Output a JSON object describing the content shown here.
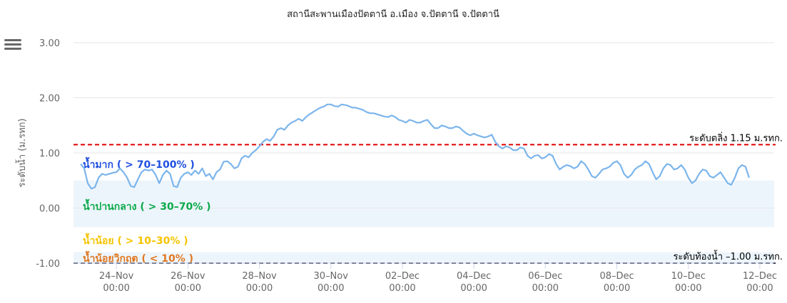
{
  "title": "สถานีสะพานเมืองปัตตานี อ.เมือง จ.ปัตตานี จ.ปัตตานี",
  "menu_icon": "hamburger-menu-icon",
  "chart_data": {
    "type": "line",
    "ylabel": "ระดับน้ำ (ม.รทก)",
    "ylim": [
      -1.0,
      3.0
    ],
    "y_ticks": [
      "3.00",
      "2.00",
      "1.00",
      "0.00",
      "-1.00"
    ],
    "y_tick_values": [
      3,
      2,
      1,
      0,
      -1
    ],
    "x_ticks": [
      {
        "day": 24,
        "line1": "24–Nov",
        "line2": "00:00"
      },
      {
        "day": 26,
        "line1": "26–Nov",
        "line2": "00:00"
      },
      {
        "day": 28,
        "line1": "28–Nov",
        "line2": "00:00"
      },
      {
        "day": 30,
        "line1": "30–Nov",
        "line2": "00:00"
      },
      {
        "day": 32,
        "line1": "02–Dec",
        "line2": "00:00"
      },
      {
        "day": 34,
        "line1": "04–Dec",
        "line2": "00:00"
      },
      {
        "day": 36,
        "line1": "06–Dec",
        "line2": "00:00"
      },
      {
        "day": 38,
        "line1": "08–Dec",
        "line2": "00:00"
      },
      {
        "day": 40,
        "line1": "10–Dec",
        "line2": "00:00"
      },
      {
        "day": 42,
        "line1": "12–Dec",
        "line2": "00:00"
      }
    ],
    "x_range_days": [
      22.8,
      42.4
    ],
    "series": [
      {
        "color": "#7cb5ec",
        "points": [
          [
            23.0,
            0.8
          ],
          [
            23.1,
            0.72
          ],
          [
            23.2,
            0.45
          ],
          [
            23.3,
            0.35
          ],
          [
            23.4,
            0.38
          ],
          [
            23.5,
            0.55
          ],
          [
            23.6,
            0.62
          ],
          [
            23.7,
            0.6
          ],
          [
            23.8,
            0.62
          ],
          [
            23.9,
            0.64
          ],
          [
            24.0,
            0.65
          ],
          [
            24.1,
            0.72
          ],
          [
            24.2,
            0.65
          ],
          [
            24.3,
            0.55
          ],
          [
            24.4,
            0.4
          ],
          [
            24.5,
            0.38
          ],
          [
            24.6,
            0.52
          ],
          [
            24.7,
            0.65
          ],
          [
            24.8,
            0.7
          ],
          [
            24.9,
            0.68
          ],
          [
            25.0,
            0.7
          ],
          [
            25.1,
            0.6
          ],
          [
            25.2,
            0.45
          ],
          [
            25.3,
            0.6
          ],
          [
            25.4,
            0.68
          ],
          [
            25.5,
            0.62
          ],
          [
            25.6,
            0.4
          ],
          [
            25.7,
            0.38
          ],
          [
            25.8,
            0.55
          ],
          [
            25.9,
            0.62
          ],
          [
            26.0,
            0.65
          ],
          [
            26.1,
            0.6
          ],
          [
            26.2,
            0.68
          ],
          [
            26.3,
            0.62
          ],
          [
            26.4,
            0.72
          ],
          [
            26.5,
            0.58
          ],
          [
            26.6,
            0.62
          ],
          [
            26.7,
            0.52
          ],
          [
            26.8,
            0.65
          ],
          [
            26.9,
            0.7
          ],
          [
            27.0,
            0.84
          ],
          [
            27.1,
            0.85
          ],
          [
            27.2,
            0.8
          ],
          [
            27.3,
            0.72
          ],
          [
            27.4,
            0.75
          ],
          [
            27.5,
            0.9
          ],
          [
            27.6,
            0.95
          ],
          [
            27.7,
            0.92
          ],
          [
            27.8,
            1.0
          ],
          [
            27.9,
            1.05
          ],
          [
            28.0,
            1.12
          ],
          [
            28.1,
            1.2
          ],
          [
            28.2,
            1.25
          ],
          [
            28.3,
            1.22
          ],
          [
            28.4,
            1.3
          ],
          [
            28.5,
            1.42
          ],
          [
            28.6,
            1.45
          ],
          [
            28.7,
            1.42
          ],
          [
            28.8,
            1.5
          ],
          [
            28.9,
            1.55
          ],
          [
            29.0,
            1.58
          ],
          [
            29.1,
            1.62
          ],
          [
            29.2,
            1.58
          ],
          [
            29.3,
            1.65
          ],
          [
            29.4,
            1.7
          ],
          [
            29.5,
            1.74
          ],
          [
            29.6,
            1.78
          ],
          [
            29.7,
            1.82
          ],
          [
            29.8,
            1.84
          ],
          [
            29.9,
            1.88
          ],
          [
            30.0,
            1.88
          ],
          [
            30.1,
            1.85
          ],
          [
            30.2,
            1.84
          ],
          [
            30.3,
            1.88
          ],
          [
            30.4,
            1.87
          ],
          [
            30.5,
            1.85
          ],
          [
            30.6,
            1.82
          ],
          [
            30.7,
            1.82
          ],
          [
            30.8,
            1.8
          ],
          [
            30.9,
            1.78
          ],
          [
            31.0,
            1.74
          ],
          [
            31.1,
            1.72
          ],
          [
            31.2,
            1.72
          ],
          [
            31.3,
            1.7
          ],
          [
            31.4,
            1.68
          ],
          [
            31.5,
            1.66
          ],
          [
            31.6,
            1.65
          ],
          [
            31.7,
            1.68
          ],
          [
            31.8,
            1.65
          ],
          [
            31.9,
            1.6
          ],
          [
            32.0,
            1.58
          ],
          [
            32.1,
            1.55
          ],
          [
            32.2,
            1.6
          ],
          [
            32.3,
            1.58
          ],
          [
            32.4,
            1.55
          ],
          [
            32.5,
            1.55
          ],
          [
            32.6,
            1.58
          ],
          [
            32.7,
            1.6
          ],
          [
            32.8,
            1.52
          ],
          [
            32.9,
            1.45
          ],
          [
            33.0,
            1.45
          ],
          [
            33.1,
            1.5
          ],
          [
            33.2,
            1.48
          ],
          [
            33.3,
            1.45
          ],
          [
            33.4,
            1.45
          ],
          [
            33.5,
            1.48
          ],
          [
            33.6,
            1.46
          ],
          [
            33.7,
            1.4
          ],
          [
            33.8,
            1.35
          ],
          [
            33.9,
            1.32
          ],
          [
            34.0,
            1.35
          ],
          [
            34.1,
            1.32
          ],
          [
            34.2,
            1.3
          ],
          [
            34.3,
            1.28
          ],
          [
            34.4,
            1.3
          ],
          [
            34.5,
            1.33
          ],
          [
            34.6,
            1.2
          ],
          [
            34.7,
            1.12
          ],
          [
            34.8,
            1.08
          ],
          [
            34.9,
            1.12
          ],
          [
            35.0,
            1.1
          ],
          [
            35.1,
            1.05
          ],
          [
            35.2,
            1.05
          ],
          [
            35.3,
            1.1
          ],
          [
            35.4,
            1.08
          ],
          [
            35.5,
            0.95
          ],
          [
            35.6,
            0.9
          ],
          [
            35.7,
            0.95
          ],
          [
            35.8,
            0.96
          ],
          [
            35.9,
            0.9
          ],
          [
            36.0,
            0.92
          ],
          [
            36.1,
            0.98
          ],
          [
            36.2,
            0.95
          ],
          [
            36.3,
            0.8
          ],
          [
            36.4,
            0.7
          ],
          [
            36.5,
            0.75
          ],
          [
            36.6,
            0.78
          ],
          [
            36.7,
            0.76
          ],
          [
            36.8,
            0.72
          ],
          [
            36.9,
            0.75
          ],
          [
            37.0,
            0.85
          ],
          [
            37.1,
            0.8
          ],
          [
            37.2,
            0.7
          ],
          [
            37.3,
            0.58
          ],
          [
            37.4,
            0.55
          ],
          [
            37.5,
            0.62
          ],
          [
            37.6,
            0.7
          ],
          [
            37.7,
            0.72
          ],
          [
            37.8,
            0.75
          ],
          [
            37.9,
            0.82
          ],
          [
            38.0,
            0.85
          ],
          [
            38.1,
            0.78
          ],
          [
            38.2,
            0.62
          ],
          [
            38.3,
            0.55
          ],
          [
            38.4,
            0.6
          ],
          [
            38.5,
            0.7
          ],
          [
            38.6,
            0.75
          ],
          [
            38.7,
            0.78
          ],
          [
            38.8,
            0.85
          ],
          [
            38.9,
            0.8
          ],
          [
            39.0,
            0.65
          ],
          [
            39.1,
            0.52
          ],
          [
            39.2,
            0.58
          ],
          [
            39.3,
            0.72
          ],
          [
            39.4,
            0.8
          ],
          [
            39.5,
            0.78
          ],
          [
            39.6,
            0.7
          ],
          [
            39.7,
            0.72
          ],
          [
            39.8,
            0.78
          ],
          [
            39.9,
            0.7
          ],
          [
            40.0,
            0.55
          ],
          [
            40.1,
            0.45
          ],
          [
            40.2,
            0.5
          ],
          [
            40.3,
            0.62
          ],
          [
            40.4,
            0.7
          ],
          [
            40.5,
            0.68
          ],
          [
            40.6,
            0.58
          ],
          [
            40.7,
            0.55
          ],
          [
            40.8,
            0.6
          ],
          [
            40.9,
            0.65
          ],
          [
            41.0,
            0.55
          ],
          [
            41.1,
            0.45
          ],
          [
            41.2,
            0.42
          ],
          [
            41.3,
            0.55
          ],
          [
            41.4,
            0.72
          ],
          [
            41.5,
            0.78
          ],
          [
            41.6,
            0.75
          ],
          [
            41.7,
            0.55
          ]
        ]
      }
    ],
    "bands": [
      {
        "label": "น้ำมาก ( > 70–100% )",
        "from": 0.5,
        "to": 1.15,
        "fill": "#ffffff",
        "color": "#1f4fe0"
      },
      {
        "label": "น้ำปานกลาง ( > 30–70% )",
        "from": -0.35,
        "to": 0.5,
        "fill": "#edf5fc",
        "color": "#0aaa4a"
      },
      {
        "label": "น้ำน้อย ( > 10–30% )",
        "from": -0.8,
        "to": -0.35,
        "fill": "#ffffff",
        "color": "#f5c400"
      },
      {
        "label": "น้ำน้อยวิกฤต ( < 10% )",
        "from": -1.0,
        "to": -0.8,
        "fill": "#edf5fc",
        "color": "#e07820"
      }
    ],
    "reference_lines": [
      {
        "value": 1.15,
        "label": "ระดับตลิ่ง 1.15 ม.รทก.",
        "color": "#e00000"
      },
      {
        "value": -1.0,
        "label": "ระดับท้องน้ำ –1.00 ม.รทก.",
        "color": "#333344"
      }
    ],
    "grid": true,
    "legend": "none"
  }
}
